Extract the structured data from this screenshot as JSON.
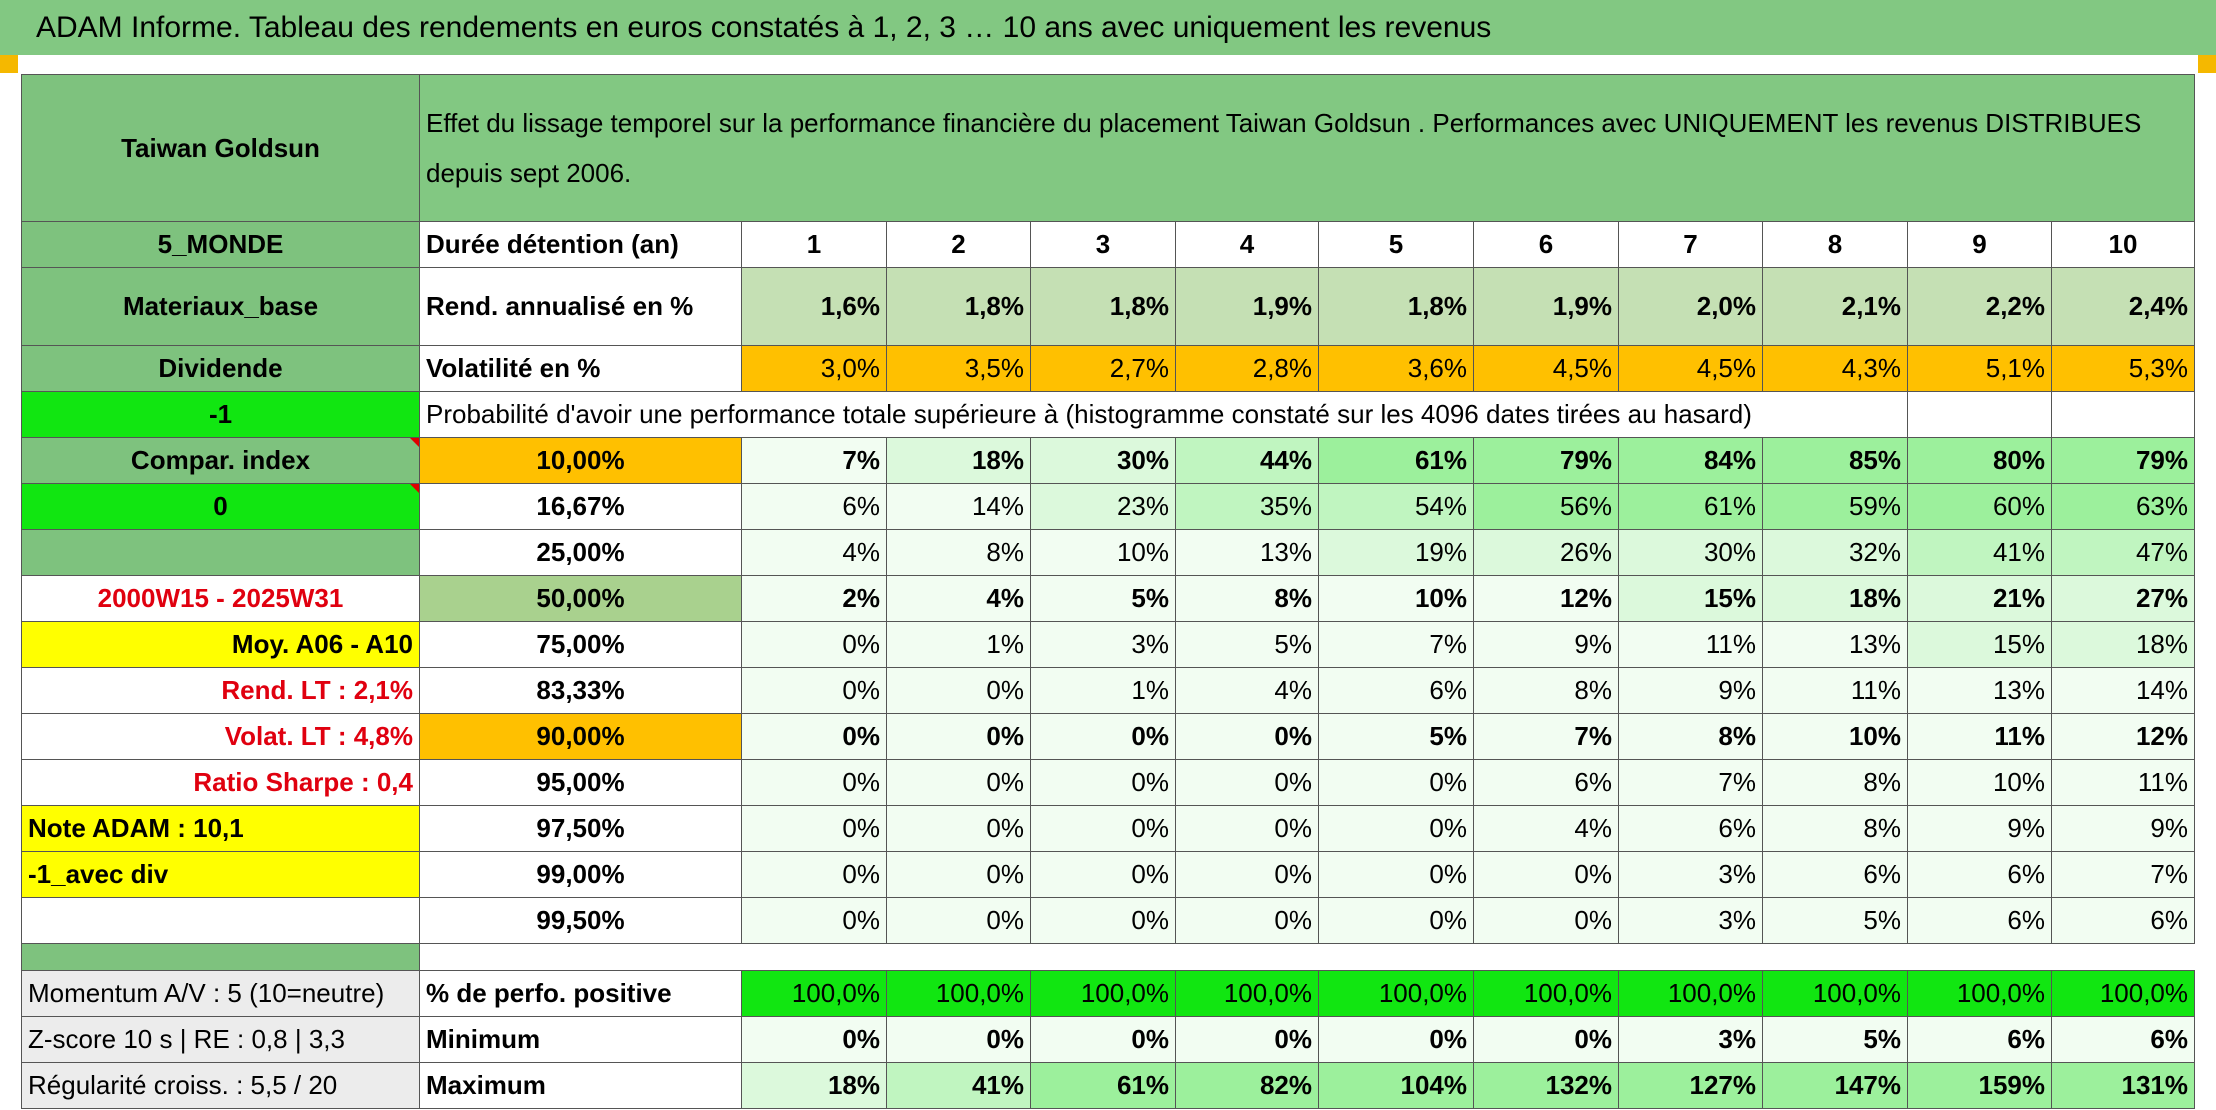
{
  "banner": "ADAM Informe. Tableau des rendements en euros constatés à 1, 2, 3 … 10 ans avec uniquement les revenus",
  "fund_name": "Taiwan Goldsun",
  "headline": "Effet du lissage temporel sur la performance financière du placement Taiwan Goldsun . Performances avec UNIQUEMENT les revenus DISTRIBUES depuis sept 2006.",
  "side": {
    "zone": "5_MONDE",
    "sector": "Materiaux_base",
    "type": "Dividende",
    "code": "-1",
    "compar_index": "Compar. index",
    "zero": "0",
    "period": "2000W15 - 2025W31",
    "moy": "Moy. A06 - A10",
    "rend_lt": "Rend. LT :   2,1%",
    "volat_lt": "Volat. LT :   4,8%",
    "sharpe": "Ratio Sharpe :    0,4",
    "note": "Note ADAM : 10,1",
    "div": "-1_avec div",
    "momentum": "Momentum A/V : 5 (10=neutre)",
    "zscore": "Z-score 10 s | RE : 0,8 | 3,3",
    "regularite": "Régularité croiss. : 5,5 / 20"
  },
  "labels": {
    "duree": "Durée détention (an)",
    "rend": "Rend. annualisé en %",
    "volat": "Volatilité en %",
    "proba": "Probabilité d'avoir une performance totale supérieure à (histogramme constaté sur les 4096 dates tirées au hasard)",
    "pos": "% de perfo. positive",
    "min": "Minimum",
    "max": "Maximum"
  },
  "years": [
    "1",
    "2",
    "3",
    "4",
    "5",
    "6",
    "7",
    "8",
    "9",
    "10"
  ],
  "rend": [
    "1,6%",
    "1,8%",
    "1,8%",
    "1,9%",
    "1,8%",
    "1,9%",
    "2,0%",
    "2,1%",
    "2,2%",
    "2,4%"
  ],
  "volat": [
    "3,0%",
    "3,5%",
    "2,7%",
    "2,8%",
    "3,6%",
    "4,5%",
    "4,5%",
    "4,3%",
    "5,1%",
    "5,3%"
  ],
  "thresholds": [
    "10,00%",
    "16,67%",
    "25,00%",
    "50,00%",
    "75,00%",
    "83,33%",
    "90,00%",
    "95,00%",
    "97,50%",
    "99,00%",
    "99,50%"
  ],
  "proba": [
    [
      "7%",
      "18%",
      "30%",
      "44%",
      "61%",
      "79%",
      "84%",
      "85%",
      "80%",
      "79%"
    ],
    [
      "6%",
      "14%",
      "23%",
      "35%",
      "54%",
      "56%",
      "61%",
      "59%",
      "60%",
      "63%"
    ],
    [
      "4%",
      "8%",
      "10%",
      "13%",
      "19%",
      "26%",
      "30%",
      "32%",
      "41%",
      "47%"
    ],
    [
      "2%",
      "4%",
      "5%",
      "8%",
      "10%",
      "12%",
      "15%",
      "18%",
      "21%",
      "27%"
    ],
    [
      "0%",
      "1%",
      "3%",
      "5%",
      "7%",
      "9%",
      "11%",
      "13%",
      "15%",
      "18%"
    ],
    [
      "0%",
      "0%",
      "1%",
      "4%",
      "6%",
      "8%",
      "9%",
      "11%",
      "13%",
      "14%"
    ],
    [
      "0%",
      "0%",
      "0%",
      "0%",
      "5%",
      "7%",
      "8%",
      "10%",
      "11%",
      "12%"
    ],
    [
      "0%",
      "0%",
      "0%",
      "0%",
      "0%",
      "6%",
      "7%",
      "8%",
      "10%",
      "11%"
    ],
    [
      "0%",
      "0%",
      "0%",
      "0%",
      "0%",
      "4%",
      "6%",
      "8%",
      "9%",
      "9%"
    ],
    [
      "0%",
      "0%",
      "0%",
      "0%",
      "0%",
      "0%",
      "3%",
      "6%",
      "6%",
      "7%"
    ],
    [
      "0%",
      "0%",
      "0%",
      "0%",
      "0%",
      "0%",
      "3%",
      "5%",
      "6%",
      "6%"
    ]
  ],
  "pos": [
    "100,0%",
    "100,0%",
    "100,0%",
    "100,0%",
    "100,0%",
    "100,0%",
    "100,0%",
    "100,0%",
    "100,0%",
    "100,0%"
  ],
  "min": [
    "0%",
    "0%",
    "0%",
    "0%",
    "0%",
    "0%",
    "3%",
    "5%",
    "6%",
    "6%"
  ],
  "max": [
    "18%",
    "41%",
    "61%",
    "82%",
    "104%",
    "132%",
    "127%",
    "147%",
    "159%",
    "131%"
  ],
  "colors": {
    "header_green": "#82c882",
    "bright_green": "#11e611",
    "yellow": "#ffff00",
    "orange": "#ffc000",
    "red_text": "#e0000f"
  }
}
